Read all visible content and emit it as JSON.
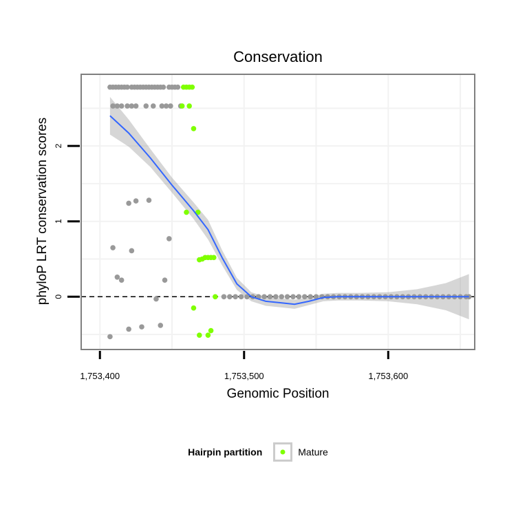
{
  "chart_data": {
    "type": "scatter",
    "title": "Conservation",
    "xlabel": "Genomic Position",
    "ylabel": "phyloP LRT conservation scores",
    "xlim": [
      1753387,
      1753660
    ],
    "ylim": [
      -0.7,
      2.95
    ],
    "x_ticks": [
      {
        "value": 1753400,
        "label": "1,753,400"
      },
      {
        "value": 1753500,
        "label": "1,753,500"
      },
      {
        "value": 1753600,
        "label": "1,753,600"
      }
    ],
    "y_ticks": [
      {
        "value": 0,
        "label": "0"
      },
      {
        "value": 1,
        "label": "1"
      },
      {
        "value": 2,
        "label": "2"
      }
    ],
    "reference_line": {
      "y": 0,
      "style": "dashed"
    },
    "colors": {
      "other": "#999999",
      "mature": "#7FFF00",
      "smooth": "#3366FF",
      "ribbon": "#999999",
      "panel_border": "#7f7f7f",
      "grid": "#f2f2f2"
    },
    "legend": {
      "title": "Hairpin partition",
      "entries": [
        "Mature"
      ],
      "position": "bottom"
    },
    "series": [
      {
        "name": "Other",
        "color": "#999999",
        "points": [
          [
            1753407,
            2.78
          ],
          [
            1753409,
            2.78
          ],
          [
            1753411,
            2.78
          ],
          [
            1753413,
            2.78
          ],
          [
            1753415,
            2.78
          ],
          [
            1753417,
            2.78
          ],
          [
            1753419,
            2.78
          ],
          [
            1753422,
            2.78
          ],
          [
            1753424,
            2.78
          ],
          [
            1753426,
            2.78
          ],
          [
            1753428,
            2.78
          ],
          [
            1753430,
            2.78
          ],
          [
            1753432,
            2.78
          ],
          [
            1753434,
            2.78
          ],
          [
            1753436,
            2.78
          ],
          [
            1753438,
            2.78
          ],
          [
            1753440,
            2.78
          ],
          [
            1753442,
            2.78
          ],
          [
            1753444,
            2.78
          ],
          [
            1753448,
            2.78
          ],
          [
            1753450,
            2.78
          ],
          [
            1753452,
            2.78
          ],
          [
            1753454,
            2.78
          ],
          [
            1753409,
            2.53
          ],
          [
            1753412,
            2.53
          ],
          [
            1753415,
            2.53
          ],
          [
            1753419,
            2.53
          ],
          [
            1753422,
            2.53
          ],
          [
            1753425,
            2.53
          ],
          [
            1753432,
            2.53
          ],
          [
            1753437,
            2.53
          ],
          [
            1753443,
            2.53
          ],
          [
            1753446,
            2.53
          ],
          [
            1753449,
            2.53
          ],
          [
            1753456,
            2.53
          ],
          [
            1753420,
            1.24
          ],
          [
            1753425,
            1.27
          ],
          [
            1753434,
            1.28
          ],
          [
            1753448,
            0.77
          ],
          [
            1753409,
            0.65
          ],
          [
            1753422,
            0.61
          ],
          [
            1753412,
            0.26
          ],
          [
            1753415,
            0.22
          ],
          [
            1753445,
            0.22
          ],
          [
            1753439,
            -0.03
          ],
          [
            1753407,
            -0.53
          ],
          [
            1753420,
            -0.43
          ],
          [
            1753429,
            -0.4
          ],
          [
            1753442,
            -0.38
          ],
          [
            1753486,
            0
          ],
          [
            1753490,
            0
          ],
          [
            1753494,
            0
          ],
          [
            1753498,
            0
          ],
          [
            1753502,
            0
          ],
          [
            1753506,
            0
          ],
          [
            1753510,
            0
          ],
          [
            1753514,
            0
          ],
          [
            1753518,
            0
          ],
          [
            1753522,
            0
          ],
          [
            1753526,
            0
          ],
          [
            1753530,
            0
          ],
          [
            1753534,
            0
          ],
          [
            1753538,
            0
          ],
          [
            1753542,
            0
          ],
          [
            1753546,
            0
          ],
          [
            1753550,
            0
          ],
          [
            1753554,
            0
          ],
          [
            1753558,
            0
          ],
          [
            1753562,
            0
          ],
          [
            1753566,
            0
          ],
          [
            1753570,
            0
          ],
          [
            1753574,
            0
          ],
          [
            1753578,
            0
          ],
          [
            1753582,
            0
          ],
          [
            1753586,
            0
          ],
          [
            1753590,
            0
          ],
          [
            1753594,
            0
          ],
          [
            1753598,
            0
          ],
          [
            1753602,
            0
          ],
          [
            1753606,
            0
          ],
          [
            1753610,
            0
          ],
          [
            1753614,
            0
          ],
          [
            1753618,
            0
          ],
          [
            1753622,
            0
          ],
          [
            1753626,
            0
          ],
          [
            1753630,
            0
          ],
          [
            1753634,
            0
          ],
          [
            1753638,
            0
          ],
          [
            1753642,
            0
          ],
          [
            1753646,
            0
          ],
          [
            1753650,
            0
          ],
          [
            1753654,
            0
          ],
          [
            1753656,
            0
          ]
        ]
      },
      {
        "name": "Mature",
        "color": "#7FFF00",
        "points": [
          [
            1753458,
            2.78
          ],
          [
            1753460,
            2.78
          ],
          [
            1753462,
            2.78
          ],
          [
            1753464,
            2.78
          ],
          [
            1753457,
            2.53
          ],
          [
            1753462,
            2.53
          ],
          [
            1753465,
            2.23
          ],
          [
            1753460,
            1.12
          ],
          [
            1753468,
            1.12
          ],
          [
            1753469,
            0.49
          ],
          [
            1753471,
            0.5
          ],
          [
            1753473,
            0.52
          ],
          [
            1753475,
            0.52
          ],
          [
            1753477,
            0.52
          ],
          [
            1753479,
            0.52
          ],
          [
            1753465,
            -0.15
          ],
          [
            1753469,
            -0.51
          ],
          [
            1753475,
            -0.51
          ],
          [
            1753477,
            -0.45
          ],
          [
            1753480,
            0
          ]
        ]
      }
    ],
    "smooth_line": {
      "color": "#3366FF",
      "x": [
        1753407,
        1753420,
        1753435,
        1753450,
        1753465,
        1753475,
        1753485,
        1753495,
        1753505,
        1753515,
        1753525,
        1753535,
        1753545,
        1753555,
        1753565,
        1753580,
        1753600,
        1753620,
        1753640,
        1753656
      ],
      "y": [
        2.4,
        2.17,
        1.84,
        1.48,
        1.14,
        0.89,
        0.51,
        0.17,
        0.0,
        -0.06,
        -0.08,
        -0.1,
        -0.06,
        -0.01,
        0.0,
        0.0,
        0.0,
        0.0,
        0.0,
        0.0
      ],
      "band_half_width": [
        0.25,
        0.18,
        0.12,
        0.1,
        0.11,
        0.13,
        0.1,
        0.08,
        0.06,
        0.06,
        0.06,
        0.06,
        0.05,
        0.05,
        0.05,
        0.05,
        0.06,
        0.1,
        0.18,
        0.3
      ]
    }
  }
}
